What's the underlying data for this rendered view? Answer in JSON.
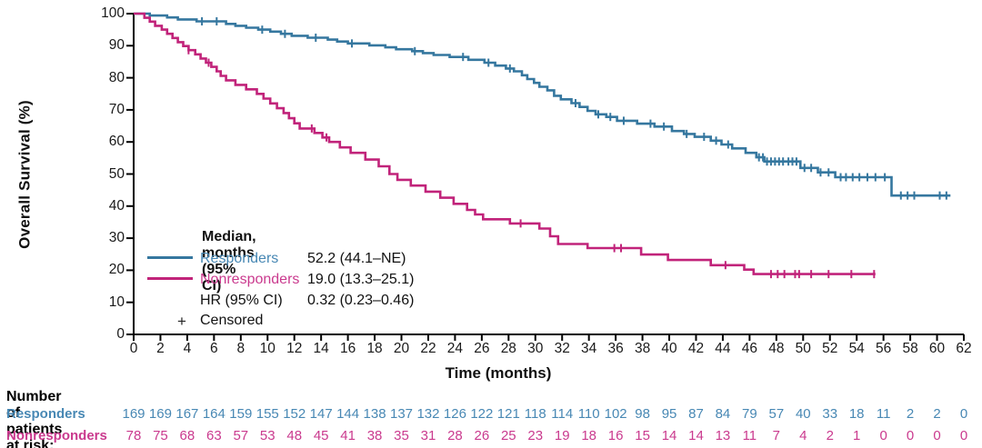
{
  "figure": {
    "x_axis_title": "Time (months)",
    "y_axis_title": "Overall Survival (%)"
  },
  "colors": {
    "responders_line": "#35779F",
    "responders_text": "#4888B4",
    "nonresponders_line": "#C1237A",
    "nonresponders_text": "#CA3A8E",
    "axis": "#000000",
    "text": "#111111"
  },
  "legend": {
    "title": "Median, months (95% CI)",
    "rows": [
      {
        "label": "Responders",
        "value": "52.2 (44.1–NE)"
      },
      {
        "label": "Nonresponders",
        "value": "19.0 (13.3–25.1)"
      },
      {
        "label": "HR (95% CI)",
        "value": "0.32 (0.23–0.46)"
      }
    ],
    "censored_symbol": "+",
    "censored_label": "Censored"
  },
  "risk_table": {
    "header": "Number of patients at risk:",
    "times": [
      0,
      2,
      4,
      6,
      8,
      10,
      12,
      14,
      16,
      18,
      20,
      22,
      24,
      26,
      28,
      30,
      32,
      34,
      36,
      38,
      40,
      42,
      44,
      46,
      48,
      50,
      52,
      54,
      56,
      58,
      60,
      62
    ],
    "rows": [
      {
        "label": "Responders",
        "color": "#4888B4",
        "values": [
          169,
          169,
          167,
          164,
          159,
          155,
          152,
          147,
          144,
          138,
          137,
          132,
          126,
          122,
          121,
          118,
          114,
          110,
          102,
          98,
          95,
          87,
          84,
          79,
          57,
          40,
          33,
          18,
          11,
          2,
          2,
          0
        ]
      },
      {
        "label": "Nonresponders",
        "color": "#CA3A8E",
        "values": [
          78,
          75,
          68,
          63,
          57,
          53,
          48,
          45,
          41,
          38,
          35,
          31,
          28,
          26,
          25,
          23,
          19,
          18,
          16,
          15,
          14,
          14,
          13,
          11,
          7,
          4,
          2,
          1,
          0,
          0,
          0,
          0
        ]
      }
    ]
  },
  "chart_data": {
    "type": "line",
    "subtype": "kaplan_meier_step",
    "title": "",
    "xlabel": "Time (months)",
    "ylabel": "Overall Survival (%)",
    "xlim": [
      0,
      62
    ],
    "ylim": [
      0,
      100
    ],
    "x_ticks": [
      0,
      2,
      4,
      6,
      8,
      10,
      12,
      14,
      16,
      18,
      20,
      22,
      24,
      26,
      28,
      30,
      32,
      34,
      36,
      38,
      40,
      42,
      44,
      46,
      48,
      50,
      52,
      54,
      56,
      58,
      60,
      62
    ],
    "y_ticks": [
      0,
      10,
      20,
      30,
      40,
      50,
      60,
      70,
      80,
      90,
      100
    ],
    "grid": false,
    "legend_position": "inside-lower-left",
    "hr_95ci": "0.32 (0.23–0.46)",
    "series": [
      {
        "name": "Responders",
        "color": "#35779F",
        "median_95ci": "52.2 (44.1–NE)",
        "end_time": 61.0,
        "steps": [
          [
            0,
            100
          ],
          [
            1.2,
            99.4
          ],
          [
            2.5,
            98.8
          ],
          [
            3.3,
            98.2
          ],
          [
            4.7,
            97.6
          ],
          [
            6.9,
            96.8
          ],
          [
            7.6,
            96.2
          ],
          [
            8.4,
            95.6
          ],
          [
            9.3,
            95.0
          ],
          [
            10.2,
            94.4
          ],
          [
            11.0,
            93.7
          ],
          [
            11.8,
            93.1
          ],
          [
            13.0,
            92.5
          ],
          [
            14.5,
            91.9
          ],
          [
            15.2,
            91.3
          ],
          [
            16.0,
            90.7
          ],
          [
            17.6,
            90.1
          ],
          [
            18.8,
            89.5
          ],
          [
            19.6,
            88.9
          ],
          [
            20.8,
            88.3
          ],
          [
            21.6,
            87.7
          ],
          [
            22.4,
            87.1
          ],
          [
            23.6,
            86.5
          ],
          [
            25.0,
            85.6
          ],
          [
            26.2,
            84.7
          ],
          [
            27.0,
            83.8
          ],
          [
            27.8,
            82.9
          ],
          [
            28.4,
            82.0
          ],
          [
            29.0,
            80.8
          ],
          [
            29.4,
            79.6
          ],
          [
            29.9,
            78.4
          ],
          [
            30.3,
            77.2
          ],
          [
            30.9,
            76.1
          ],
          [
            31.4,
            74.4
          ],
          [
            31.9,
            73.3
          ],
          [
            32.7,
            72.1
          ],
          [
            33.3,
            70.9
          ],
          [
            33.9,
            69.7
          ],
          [
            34.5,
            68.6
          ],
          [
            35.3,
            67.8
          ],
          [
            36.1,
            66.6
          ],
          [
            37.6,
            65.7
          ],
          [
            38.9,
            64.8
          ],
          [
            40.2,
            63.4
          ],
          [
            41.1,
            62.5
          ],
          [
            41.9,
            61.6
          ],
          [
            43.1,
            60.4
          ],
          [
            43.9,
            59.2
          ],
          [
            44.7,
            58.0
          ],
          [
            45.7,
            56.6
          ],
          [
            46.5,
            55.2
          ],
          [
            47.1,
            53.9
          ],
          [
            49.8,
            51.9
          ],
          [
            51.1,
            50.5
          ],
          [
            52.4,
            49.0
          ],
          [
            56.6,
            43.3
          ]
        ],
        "censor_times": [
          5.1,
          6.2,
          9.6,
          11.3,
          13.6,
          16.3,
          21.0,
          24.6,
          26.5,
          28.1,
          33.0,
          34.7,
          35.6,
          36.6,
          38.6,
          39.6,
          41.3,
          42.6,
          43.5,
          44.4,
          46.7,
          47.0,
          47.3,
          47.6,
          47.9,
          48.2,
          48.5,
          48.9,
          49.2,
          49.5,
          50.1,
          50.6,
          51.3,
          51.9,
          52.8,
          53.2,
          53.7,
          54.2,
          54.8,
          55.4,
          56.1,
          57.3,
          57.8,
          58.3,
          60.2,
          60.7
        ]
      },
      {
        "name": "Nonresponders",
        "color": "#C1237A",
        "median_95ci": "19.0 (13.3–25.1)",
        "end_time": 55.4,
        "steps": [
          [
            0,
            100
          ],
          [
            0.8,
            98.7
          ],
          [
            1.2,
            97.5
          ],
          [
            1.6,
            96.2
          ],
          [
            2.1,
            95.0
          ],
          [
            2.5,
            93.7
          ],
          [
            2.9,
            92.4
          ],
          [
            3.3,
            91.1
          ],
          [
            3.7,
            89.9
          ],
          [
            4.1,
            88.6
          ],
          [
            4.6,
            87.3
          ],
          [
            5.0,
            86.0
          ],
          [
            5.4,
            84.7
          ],
          [
            5.8,
            83.4
          ],
          [
            6.2,
            82.0
          ],
          [
            6.5,
            80.6
          ],
          [
            6.9,
            79.2
          ],
          [
            7.6,
            77.8
          ],
          [
            8.4,
            76.4
          ],
          [
            9.2,
            75.0
          ],
          [
            9.7,
            73.5
          ],
          [
            10.2,
            72.0
          ],
          [
            10.7,
            70.5
          ],
          [
            11.2,
            69.0
          ],
          [
            11.6,
            67.4
          ],
          [
            12.0,
            65.8
          ],
          [
            12.4,
            64.2
          ],
          [
            13.5,
            62.8
          ],
          [
            14.1,
            61.4
          ],
          [
            14.6,
            60.0
          ],
          [
            15.4,
            58.3
          ],
          [
            16.2,
            56.6
          ],
          [
            17.3,
            54.5
          ],
          [
            18.3,
            52.4
          ],
          [
            19.1,
            50.0
          ],
          [
            19.7,
            48.2
          ],
          [
            20.7,
            46.4
          ],
          [
            21.8,
            44.5
          ],
          [
            22.9,
            42.6
          ],
          [
            23.9,
            40.7
          ],
          [
            24.9,
            38.8
          ],
          [
            25.5,
            37.4
          ],
          [
            26.1,
            35.9
          ],
          [
            28.1,
            34.6
          ],
          [
            30.3,
            33.0
          ],
          [
            31.1,
            30.6
          ],
          [
            31.7,
            28.2
          ],
          [
            33.9,
            26.9
          ],
          [
            37.9,
            24.9
          ],
          [
            39.9,
            23.2
          ],
          [
            43.1,
            21.6
          ],
          [
            45.6,
            20.2
          ],
          [
            46.3,
            18.8
          ]
        ],
        "censor_times": [
          4.1,
          5.6,
          13.3,
          14.4,
          28.9,
          35.9,
          36.4,
          44.2,
          47.6,
          48.1,
          48.6,
          49.4,
          49.7,
          50.6,
          51.9,
          53.6,
          55.3
        ]
      }
    ]
  }
}
